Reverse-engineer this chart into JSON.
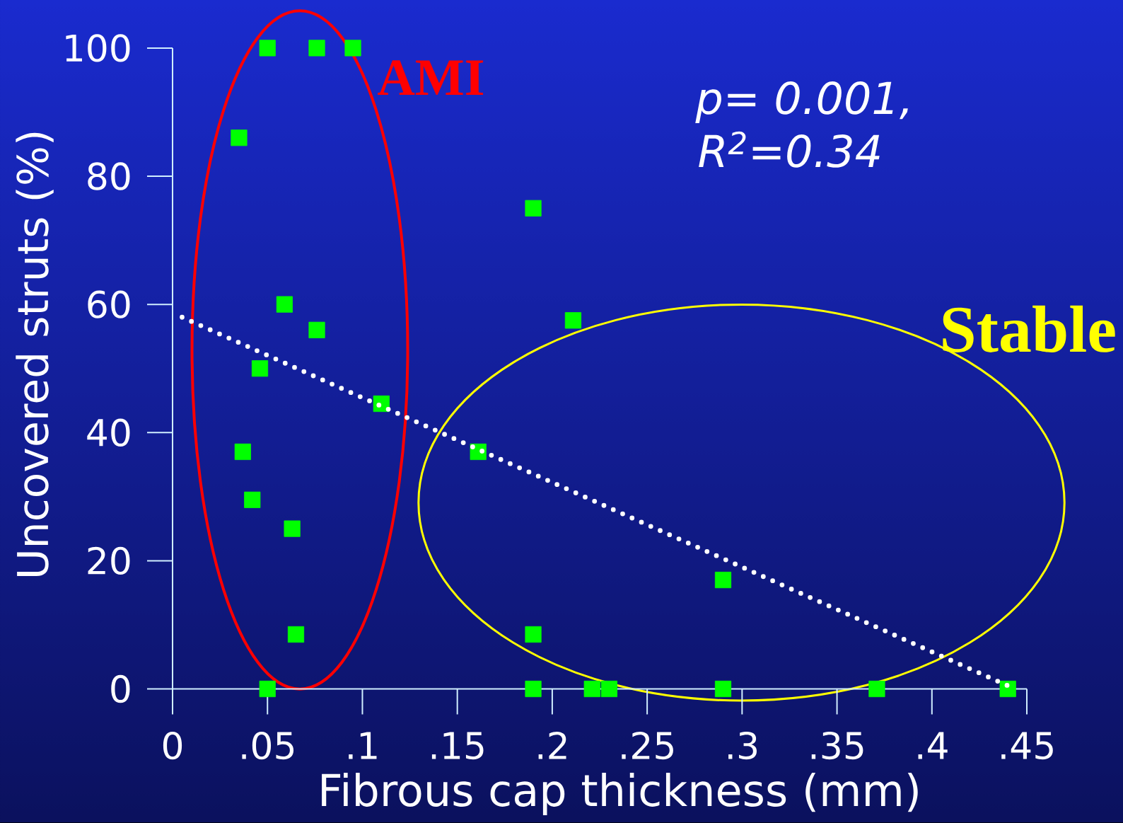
{
  "chart_data": {
    "type": "scatter",
    "xlabel": "Fibrous cap thickness (mm)",
    "ylabel": "Uncovered struts (%)",
    "annotations": [
      "AMI",
      "Stable",
      "p= 0.001,",
      "R$^{2}$=0.34"
    ],
    "xlim": [
      0,
      0.45
    ],
    "ylim": [
      0,
      100
    ],
    "xticks": [
      0,
      {
        "value": 0.05,
        "label": ".05"
      },
      {
        "value": 0.1,
        "label": ".1"
      },
      {
        "value": 0.15,
        "label": ".15"
      },
      {
        "value": 0.2,
        "label": ".2"
      },
      {
        "value": 0.25,
        "label": ".25"
      },
      {
        "value": 0.3,
        "label": ".3"
      },
      {
        "value": 0.35,
        "label": ".35"
      },
      {
        "value": 0.4,
        "label": ".4"
      },
      {
        "value": 0.45,
        "label": ".45"
      }
    ],
    "yticks": [
      0,
      20,
      40,
      60,
      80,
      100
    ],
    "marker": "square",
    "series": [
      {
        "color": "#00ff00",
        "x": [
          0.035,
          0.037,
          0.042,
          0.046,
          0.05,
          0.05,
          0.059,
          0.063,
          0.065,
          0.076,
          0.076,
          0.095,
          0.11,
          0.161,
          0.19,
          0.19,
          0.19,
          0.211,
          0.221,
          0.23,
          0.29,
          0.29,
          0.371,
          0.44
        ],
        "values": [
          86,
          37,
          29.5,
          50,
          100,
          0,
          60,
          25,
          8.5,
          100,
          56,
          100,
          44.5,
          37,
          75,
          8.5,
          0,
          57.5,
          0,
          0,
          17,
          0,
          0,
          0
        ]
      },
      {
        "type": "line",
        "color": "#ffffff",
        "marker": "none",
        "line_style": "dotted",
        "x": [
          0.005,
          0.44
        ],
        "values": [
          58,
          0.5
        ]
      }
    ]
  }
}
